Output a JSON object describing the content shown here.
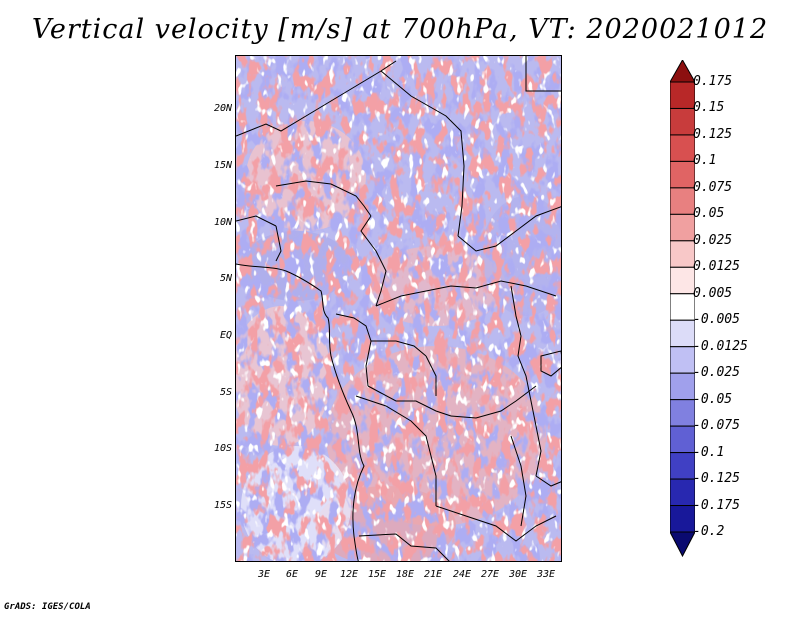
{
  "title": "Vertical velocity [m/s] at 700hPa, VT: 2020021012",
  "footer": "GrADS: IGES/COLA",
  "map": {
    "lat_labels": [
      "20N",
      "15N",
      "10N",
      "5N",
      "EQ",
      "5S",
      "10S",
      "15S"
    ],
    "lon_labels": [
      "3E",
      "6E",
      "9E",
      "12E",
      "15E",
      "18E",
      "21E",
      "24E",
      "27E",
      "30E",
      "33E"
    ],
    "lat_values": [
      20,
      15,
      10,
      5,
      0,
      -5,
      -10,
      -15
    ],
    "lon_values": [
      3,
      6,
      9,
      12,
      15,
      18,
      21,
      24,
      27,
      30,
      33
    ],
    "region": "Central Africa"
  },
  "colorbar": {
    "labels": [
      "0.175",
      "0.15",
      "0.125",
      "0.1",
      "0.075",
      "0.05",
      "0.025",
      "0.0125",
      "0.005",
      "-0.005",
      "-0.0125",
      "-0.025",
      "-0.05",
      "-0.075",
      "-0.1",
      "-0.125",
      "-0.175",
      "-0.2"
    ],
    "colors": [
      "#a01820",
      "#b82828",
      "#c83c3c",
      "#d85050",
      "#e06464",
      "#e88080",
      "#f0a0a0",
      "#f8c8c8",
      "#fde6e6",
      "#ffffff",
      "#dcdcf8",
      "#c0c0f4",
      "#a0a0ec",
      "#8080e0",
      "#6060d4",
      "#4040c4",
      "#2828b0",
      "#18189a",
      "#0c0c80"
    ],
    "top_arrow_color": "#8c1010",
    "bottom_arrow_color": "#0a0a70"
  }
}
